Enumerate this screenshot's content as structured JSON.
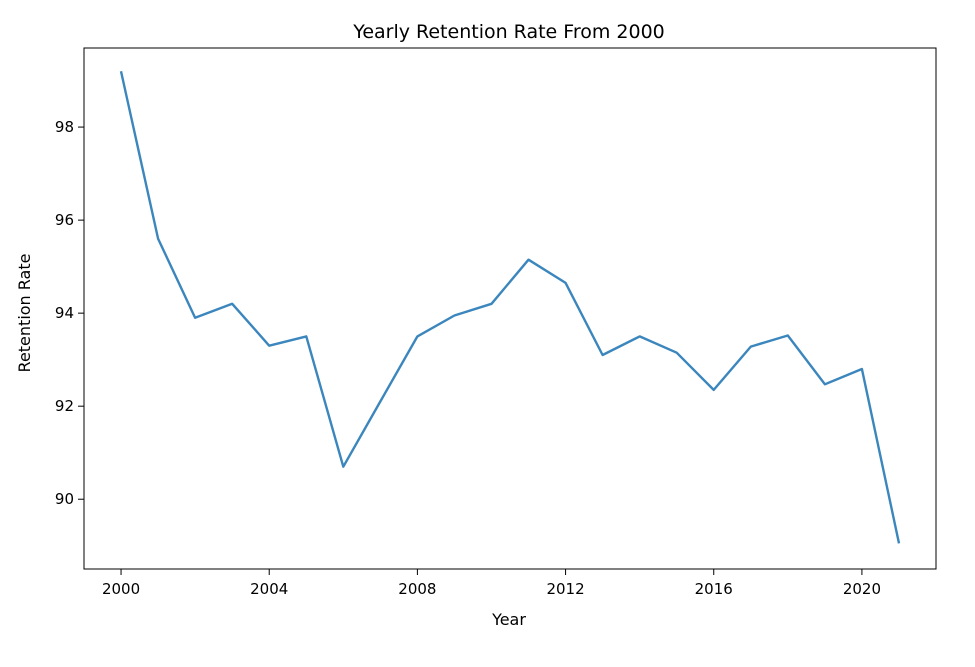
{
  "chart_data": {
    "type": "line",
    "title": "Yearly Retention Rate From 2000",
    "xlabel": "Year",
    "ylabel": "Retention Rate",
    "xlim": [
      1999,
      2022
    ],
    "ylim": [
      88.5,
      99.7
    ],
    "xticks": [
      2000,
      2004,
      2008,
      2012,
      2016,
      2020
    ],
    "yticks": [
      90,
      92,
      94,
      96,
      98
    ],
    "grid": false,
    "series": [
      {
        "color": "#3b86bd",
        "x": [
          2000,
          2001,
          2002,
          2003,
          2004,
          2005,
          2006,
          2007,
          2008,
          2009,
          2010,
          2011,
          2012,
          2013,
          2014,
          2015,
          2016,
          2017,
          2018,
          2019,
          2020,
          2021
        ],
        "values": [
          99.2,
          95.6,
          93.9,
          94.2,
          93.3,
          93.5,
          90.7,
          92.1,
          93.5,
          93.95,
          94.2,
          95.15,
          94.65,
          93.1,
          93.5,
          93.15,
          92.35,
          93.28,
          93.52,
          92.47,
          92.8,
          89.05
        ]
      }
    ]
  }
}
